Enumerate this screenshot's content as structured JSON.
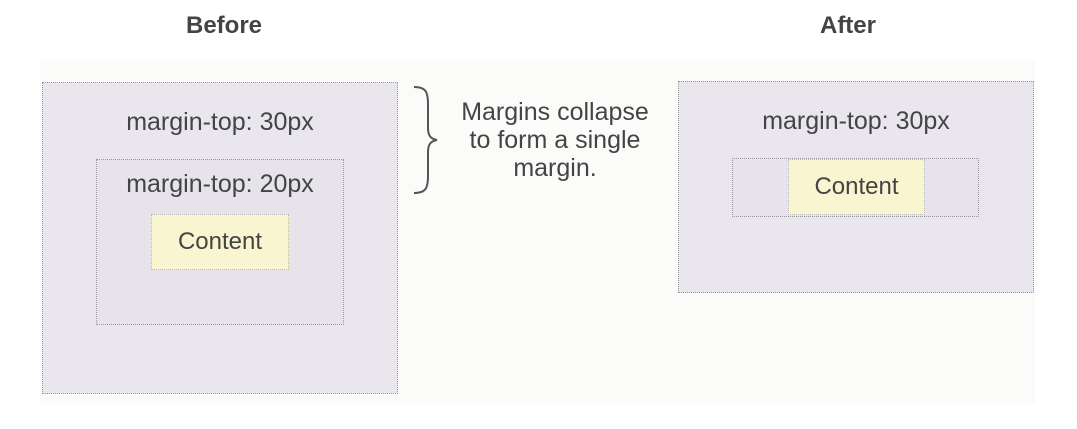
{
  "before": {
    "title": "Before",
    "outer_label": "margin-top: 30px",
    "inner_label": "margin-top: 20px",
    "content_label": "Content"
  },
  "after": {
    "title": "After",
    "outer_label": "margin-top: 30px",
    "content_label": "Content"
  },
  "note": {
    "line1": "Margins collapse",
    "line2": "to form a single",
    "line3": "margin."
  },
  "colors": {
    "box_fill": "#e9e6ee",
    "content_fill": "#f8f5d0",
    "border": "#9a9a9a",
    "text": "#444444"
  }
}
